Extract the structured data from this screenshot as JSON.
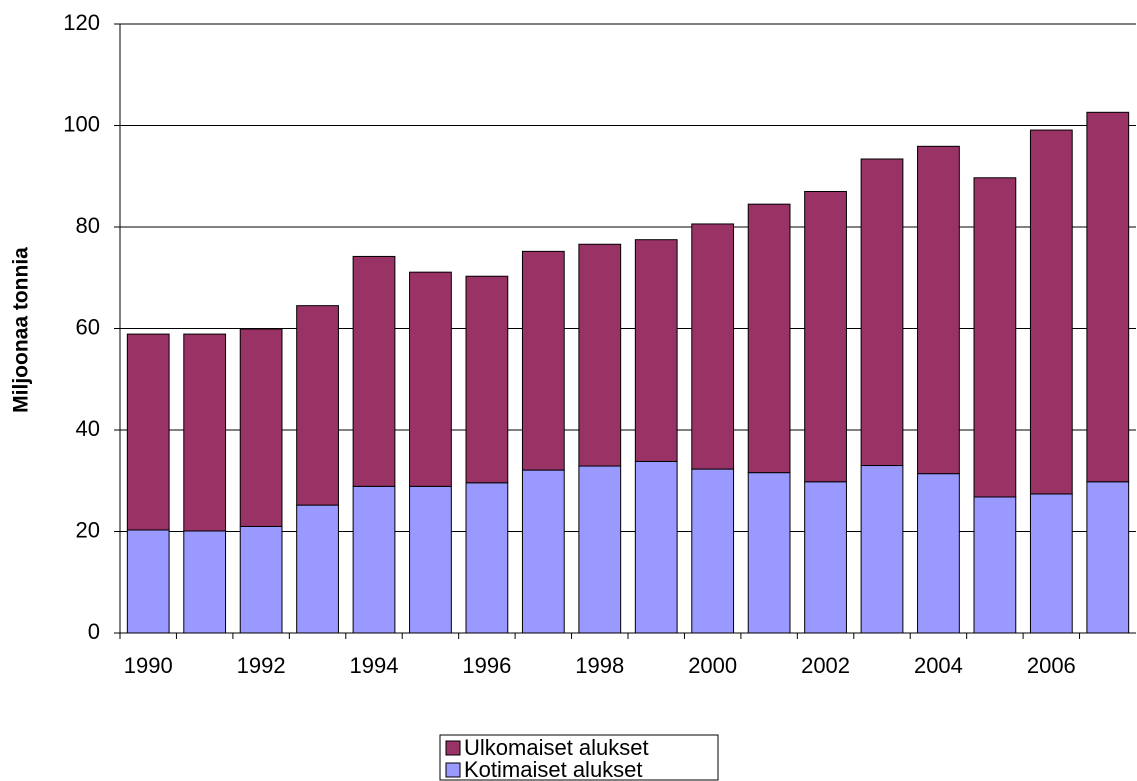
{
  "chart_data": {
    "type": "stacked_bar",
    "y_axis_label": "Miljoonaa tonnia",
    "categories": [
      "1990",
      null,
      "1992",
      null,
      "1994",
      null,
      "1996",
      null,
      "1998",
      null,
      "2000",
      null,
      "2002",
      null,
      "2004",
      null,
      "2006",
      null
    ],
    "series": [
      {
        "name": "Ulkomaiset alukset",
        "color": "#993366",
        "values": [
          38.6,
          38.8,
          38.9,
          39.3,
          45.3,
          42.2,
          40.7,
          43.1,
          43.7,
          43.7,
          48.3,
          52.9,
          57.2,
          60.4,
          64.5,
          62.9,
          71.7,
          72.8
        ]
      },
      {
        "name": "Kotimaiset alukset",
        "color": "#9999ff",
        "values": [
          20.3,
          20.1,
          21.0,
          25.2,
          28.9,
          28.9,
          29.6,
          32.1,
          32.9,
          33.8,
          32.3,
          31.6,
          29.8,
          33.0,
          31.4,
          26.8,
          27.4,
          29.8
        ]
      }
    ],
    "ylim": [
      0,
      120
    ],
    "yticks": [
      0,
      20,
      40,
      60,
      80,
      100,
      120
    ],
    "grid": true
  }
}
